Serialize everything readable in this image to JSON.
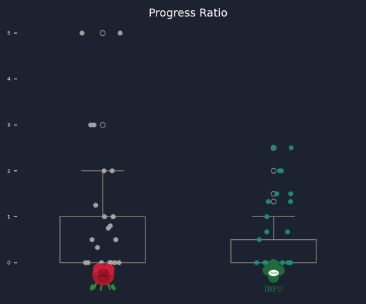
{
  "chart_data": {
    "type": "box",
    "title": "Progress Ratio",
    "xlabel": "",
    "ylabel": "",
    "ylim": [
      -0.2,
      5.15
    ],
    "yticks": [
      0,
      1,
      2,
      3,
      4,
      5
    ],
    "grid": false,
    "colors": {
      "background": "#1c2230",
      "box": "#8a8a8a",
      "series_0_points": "#a6a6a6",
      "series_1_points": "#1a8f7a"
    },
    "series": [
      {
        "logo": "england-rose-icon",
        "box": {
          "q1": 0,
          "median": 0,
          "q3": 1.0,
          "whisker_low": 0,
          "whisker_high": 2.0
        },
        "outliers": [
          3.0,
          5.0
        ],
        "points": [
          5.0,
          5.0,
          3.0,
          3.0,
          2.0,
          2.0,
          1.25,
          1.0,
          1.0,
          1.0,
          0.8,
          0.75,
          0.5,
          0.5,
          0.33,
          0,
          0,
          0,
          0,
          0,
          0,
          0,
          0
        ]
      },
      {
        "logo": "irfu-shamrock-icon",
        "logo_text": "IRFU",
        "box": {
          "q1": 0,
          "median": 0,
          "q3": 0.5,
          "whisker_low": 0,
          "whisker_high": 1.0
        },
        "outliers": [
          1.33,
          1.5,
          2.0,
          2.5
        ],
        "points": [
          2.5,
          2.5,
          2.0,
          2.0,
          1.5,
          1.5,
          1.33,
          1.33,
          1.0,
          0.67,
          0.67,
          0.5,
          0,
          0,
          0,
          0,
          0,
          0,
          0,
          0,
          0,
          0
        ]
      }
    ]
  }
}
